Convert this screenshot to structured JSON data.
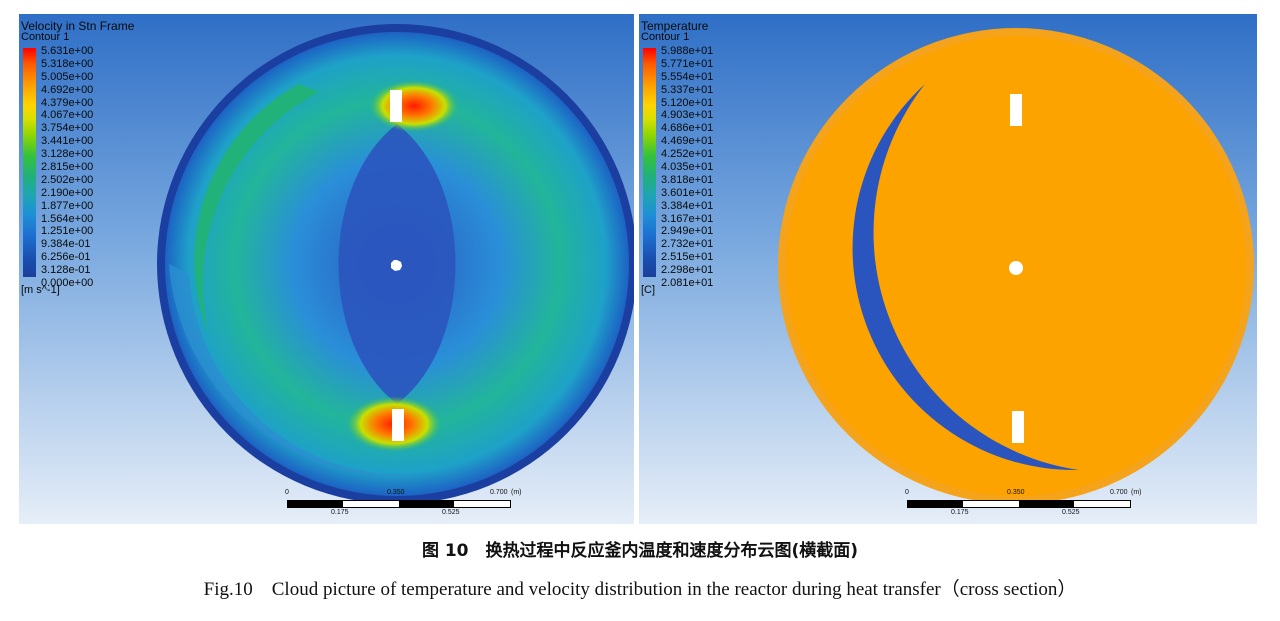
{
  "velocity": {
    "title": "Velocity in Stn Frame",
    "subtitle": "Contour 1",
    "ticks": [
      "5.631e+00",
      "5.318e+00",
      "5.005e+00",
      "4.692e+00",
      "4.379e+00",
      "4.067e+00",
      "3.754e+00",
      "3.441e+00",
      "3.128e+00",
      "2.815e+00",
      "2.502e+00",
      "2.190e+00",
      "1.877e+00",
      "1.564e+00",
      "1.251e+00",
      "9.384e-01",
      "6.256e-01",
      "3.128e-01",
      "0.000e+00"
    ],
    "unit": "[m s^-1]",
    "scale": {
      "top_labels": [
        "0",
        "0.350",
        "0.700",
        "(m)"
      ],
      "bottom_labels": [
        "0.175",
        "0.525"
      ]
    }
  },
  "temperature": {
    "title": "Temperature",
    "subtitle": "Contour 1",
    "ticks": [
      "5.988e+01",
      "5.771e+01",
      "5.554e+01",
      "5.337e+01",
      "5.120e+01",
      "4.903e+01",
      "4.686e+01",
      "4.469e+01",
      "4.252e+01",
      "4.035e+01",
      "3.818e+01",
      "3.601e+01",
      "3.384e+01",
      "3.167e+01",
      "2.949e+01",
      "2.732e+01",
      "2.515e+01",
      "2.298e+01",
      "2.081e+01"
    ],
    "unit": "[C]",
    "scale": {
      "top_labels": [
        "0",
        "0.350",
        "0.700",
        "(m)"
      ],
      "bottom_labels": [
        "0.175",
        "0.525"
      ]
    }
  },
  "caption": {
    "zh": "图 10　换热过程中反应釜内温度和速度分布云图(横截面)",
    "en": "Fig.10　Cloud picture of temperature and velocity distribution in the reactor during heat transfer（cross section）"
  }
}
